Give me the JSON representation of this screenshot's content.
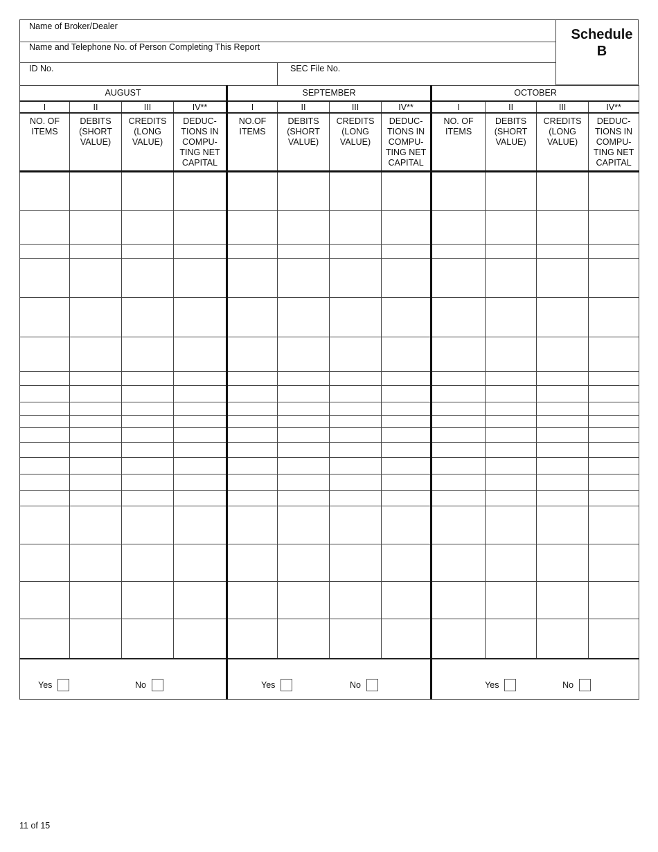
{
  "header": {
    "broker_label": "Name of Broker/Dealer",
    "person_label": "Name and Telephone No. of Person Completing This Report",
    "id_label": "ID No.",
    "sec_label": "SEC File No.",
    "schedule_title": "Schedule",
    "schedule_letter": "B"
  },
  "months": [
    {
      "name": "AUGUST",
      "numerals": [
        "I",
        "II",
        "III",
        "IV**"
      ],
      "headers": [
        "NO. OF ITEMS",
        "DEBITS (SHORT VALUE)",
        "CREDITS (LONG VALUE)",
        "DEDUC- TIONS IN COMPU- TING NET CAPITAL"
      ],
      "yes_label": "Yes",
      "no_label": "No"
    },
    {
      "name": "SEPTEMBER",
      "numerals": [
        "I",
        "II",
        "III",
        "IV**"
      ],
      "headers": [
        "NO.OF ITEMS",
        "DEBITS (SHORT VALUE)",
        "CREDITS (LONG VALUE)",
        "DEDUC- TIONS IN COMPU- TING NET CAPITAL"
      ],
      "yes_label": "Yes",
      "no_label": "No"
    },
    {
      "name": "OCTOBER",
      "numerals": [
        "I",
        "II",
        "III",
        "IV**"
      ],
      "headers": [
        "NO. OF ITEMS",
        "DEBITS (SHORT VALUE)",
        "CREDITS (LONG VALUE)",
        "DEDUC- TIONS IN COMPU- TING NET CAPITAL"
      ],
      "yes_label": "Yes",
      "no_label": "No"
    }
  ],
  "footer": {
    "page": "11 of 15"
  }
}
